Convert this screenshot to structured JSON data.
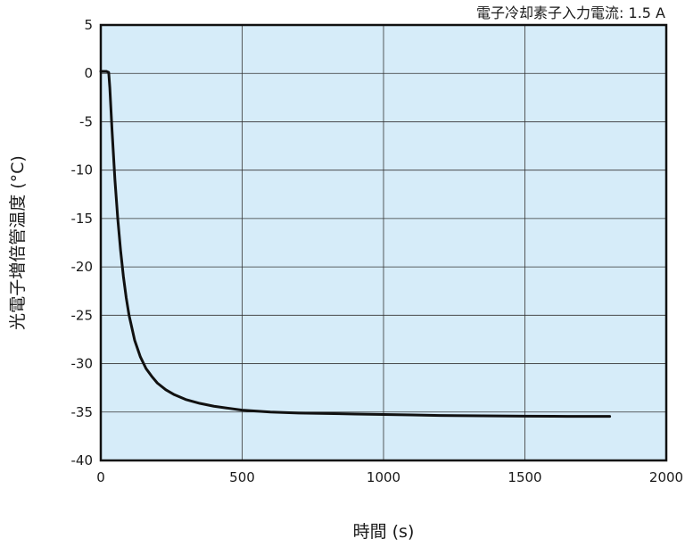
{
  "chart_data": {
    "type": "line",
    "title": "",
    "annotation": "電子冷却素子入力電流: 1.5 A",
    "xlabel": "時間 (s)",
    "ylabel": "光電子増倍管温度 (°C)",
    "xlim": [
      0,
      2000
    ],
    "ylim": [
      -40,
      5
    ],
    "xticks": [
      0,
      500,
      1000,
      1500,
      2000
    ],
    "yticks": [
      5,
      0,
      -5,
      -10,
      -15,
      -20,
      -25,
      -30,
      -35,
      -40
    ],
    "grid": true,
    "legend": "none",
    "colors": {
      "plot_background": "#d6ecf9",
      "line": "#111111",
      "grid": "#333333",
      "frame": "#111111"
    },
    "series": [
      {
        "x": [
          0,
          20,
          28,
          32,
          40,
          50,
          60,
          70,
          80,
          90,
          100,
          120,
          140,
          160,
          180,
          200,
          230,
          260,
          300,
          350,
          400,
          450,
          500,
          600,
          700,
          800,
          900,
          1000,
          1100,
          1200,
          1300,
          1400,
          1500,
          1600,
          1700,
          1800
        ],
        "y": [
          0.2,
          0.2,
          0.1,
          -1.5,
          -6,
          -11,
          -15,
          -18.3,
          -21,
          -23.2,
          -25,
          -27.6,
          -29.3,
          -30.5,
          -31.3,
          -32,
          -32.7,
          -33.2,
          -33.7,
          -34.1,
          -34.4,
          -34.6,
          -34.8,
          -35.0,
          -35.1,
          -35.15,
          -35.2,
          -35.25,
          -35.3,
          -35.35,
          -35.38,
          -35.4,
          -35.42,
          -35.44,
          -35.45,
          -35.45
        ]
      }
    ]
  }
}
